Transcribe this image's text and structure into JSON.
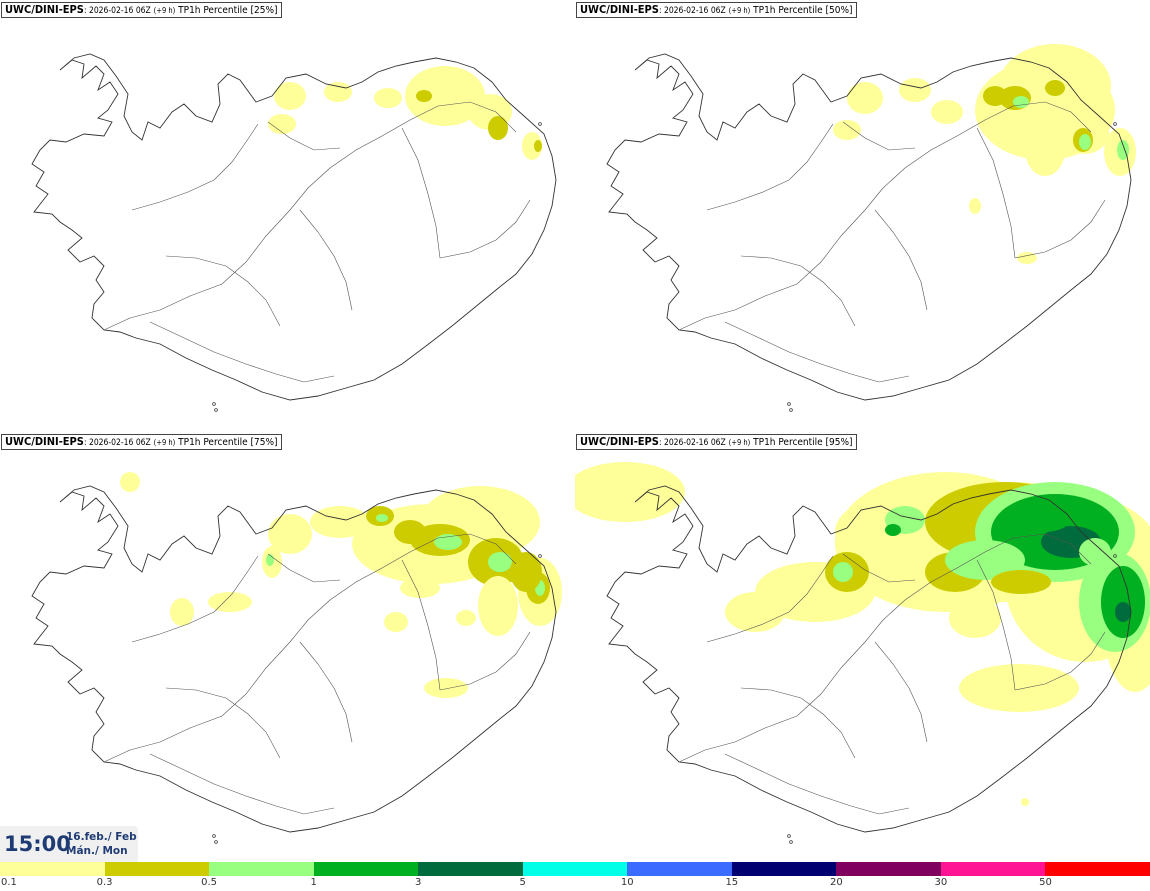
{
  "model": "UWC/DINI-EPS",
  "run": ": 2026-02-16 06Z",
  "lead": "(+9 h)",
  "variable": "TP1h Percentile",
  "panels": [
    {
      "percentile": "[25%]",
      "level": 0
    },
    {
      "percentile": "[50%]",
      "level": 1
    },
    {
      "percentile": "[75%]",
      "level": 2
    },
    {
      "percentile": "[95%]",
      "level": 3
    }
  ],
  "valid_time": "15:00",
  "date_line1": "16.feb./ Feb",
  "date_line2": "Mán./ Mon",
  "legend": {
    "colors": [
      "#ffff99",
      "#cccc00",
      "#99ff80",
      "#00b020",
      "#006b3c",
      "#00ffe6",
      "#3c6cff",
      "#000070",
      "#800060",
      "#ff1493",
      "#ff0000"
    ],
    "ticks": [
      "0.1",
      "0.3",
      "0.5",
      "1",
      "3",
      "5",
      "10",
      "15",
      "20",
      "30",
      "50"
    ]
  },
  "colors": {
    "coast": "#333333",
    "roads": "#555555",
    "time_text": "#1f3b73"
  }
}
